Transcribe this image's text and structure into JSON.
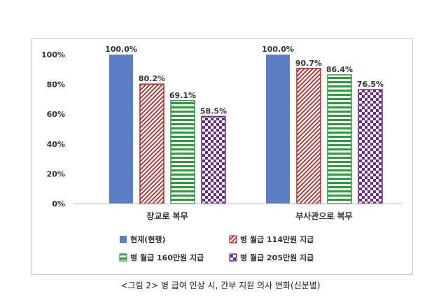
{
  "caption": "<그림 2> 병 급여 인상 시, 간부 지원 의사 변화(신분별)",
  "chart_data": {
    "type": "bar",
    "title": "",
    "xlabel": "",
    "ylabel": "",
    "ylim": [
      0,
      100
    ],
    "yticks": [
      "0%",
      "20%",
      "40%",
      "60%",
      "80%",
      "100%"
    ],
    "categories": [
      "장교로 복무",
      "부사관으로 복무"
    ],
    "grid": false,
    "legend_position": "bottom",
    "series": [
      {
        "name": "현재(현행)",
        "values": [
          100.0,
          100.0
        ],
        "labels": [
          "100.0%",
          "100.0%"
        ],
        "color": "#5b7ec4",
        "pattern": "solid"
      },
      {
        "name": "병 월급 114만원 지급",
        "values": [
          80.2,
          90.7
        ],
        "labels": [
          "80.2%",
          "90.7%"
        ],
        "color": "#b02a2a",
        "pattern": "diagonal"
      },
      {
        "name": "병 월급 160만원 지급",
        "values": [
          69.1,
          86.4
        ],
        "labels": [
          "69.1%",
          "86.4%"
        ],
        "color": "#2e9a3a",
        "pattern": "horizontal"
      },
      {
        "name": "병 월급 205만원 지급",
        "values": [
          58.5,
          76.5
        ],
        "labels": [
          "58.5%",
          "76.5%"
        ],
        "color": "#6a2a8e",
        "pattern": "checker"
      }
    ]
  }
}
